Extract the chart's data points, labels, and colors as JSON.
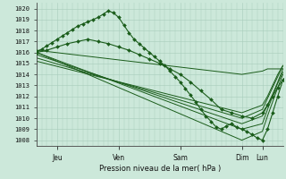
{
  "ylabel": "Pression niveau de la mer( hPa )",
  "ylim": [
    1007.5,
    1020.5
  ],
  "yticks": [
    1008,
    1009,
    1010,
    1011,
    1012,
    1013,
    1014,
    1015,
    1016,
    1017,
    1018,
    1019,
    1020
  ],
  "xlim": [
    0,
    288
  ],
  "bg_color": "#cce8da",
  "grid_color": "#a8ccba",
  "line_color": "#1a5c1a",
  "xtick_pos": [
    24,
    96,
    168,
    240,
    264
  ],
  "xtick_labels": [
    "Jeu",
    "Ven",
    "Sam",
    "Dim",
    "Lun"
  ],
  "series": [
    {
      "x": [
        0,
        6,
        12,
        18,
        24,
        30,
        36,
        42,
        48,
        54,
        60,
        66,
        72,
        78,
        84,
        90,
        96,
        102,
        108,
        114,
        120,
        126,
        132,
        138,
        144,
        150,
        156,
        162,
        168,
        174,
        180,
        186,
        192,
        198,
        204,
        210,
        216,
        222,
        228,
        234,
        240,
        246,
        252,
        258,
        264,
        270,
        276,
        282,
        288
      ],
      "y": [
        1016.1,
        1016.3,
        1016.6,
        1016.9,
        1017.2,
        1017.5,
        1017.8,
        1018.1,
        1018.4,
        1018.6,
        1018.8,
        1019.0,
        1019.2,
        1019.5,
        1019.8,
        1019.6,
        1019.2,
        1018.5,
        1017.8,
        1017.2,
        1016.8,
        1016.4,
        1016.0,
        1015.6,
        1015.2,
        1014.8,
        1014.3,
        1013.8,
        1013.3,
        1012.7,
        1012.1,
        1011.5,
        1010.8,
        1010.2,
        1009.7,
        1009.2,
        1009.0,
        1009.3,
        1009.5,
        1009.2,
        1009.0,
        1008.8,
        1008.5,
        1008.2,
        1008.0,
        1009.0,
        1010.5,
        1012.0,
        1013.5
      ],
      "marker": "D",
      "ms": 2.0
    },
    {
      "x": [
        0,
        240,
        264,
        270,
        276,
        282,
        288
      ],
      "y": [
        1016.0,
        1008.0,
        1008.8,
        1010.2,
        1011.5,
        1012.8,
        1014.0
      ],
      "marker": null,
      "ms": 0
    },
    {
      "x": [
        0,
        240,
        264,
        270,
        276,
        282,
        288
      ],
      "y": [
        1016.0,
        1009.0,
        1009.5,
        1010.8,
        1012.0,
        1013.2,
        1014.2
      ],
      "marker": null,
      "ms": 0
    },
    {
      "x": [
        0,
        240,
        264,
        270,
        276,
        282,
        288
      ],
      "y": [
        1015.8,
        1009.5,
        1010.2,
        1011.2,
        1012.2,
        1013.3,
        1014.5
      ],
      "marker": null,
      "ms": 0
    },
    {
      "x": [
        0,
        240,
        264,
        270,
        276,
        282,
        288
      ],
      "y": [
        1015.5,
        1010.0,
        1010.8,
        1011.8,
        1012.8,
        1013.8,
        1014.8
      ],
      "marker": null,
      "ms": 0
    },
    {
      "x": [
        0,
        240,
        264,
        270,
        276,
        282,
        288
      ],
      "y": [
        1015.2,
        1010.5,
        1011.2,
        1012.0,
        1013.0,
        1014.0,
        1014.8
      ],
      "marker": null,
      "ms": 0
    },
    {
      "x": [
        0,
        240,
        264,
        270,
        276,
        282,
        288
      ],
      "y": [
        1016.2,
        1014.0,
        1014.3,
        1014.5,
        1014.5,
        1014.5,
        1014.5
      ],
      "marker": null,
      "ms": 0
    },
    {
      "x": [
        0,
        12,
        24,
        36,
        48,
        60,
        72,
        84,
        96,
        108,
        120,
        132,
        144,
        156,
        168,
        180,
        192,
        204,
        216,
        228,
        240,
        252,
        264,
        270,
        276,
        282,
        288
      ],
      "y": [
        1016.0,
        1016.2,
        1016.5,
        1016.8,
        1017.0,
        1017.2,
        1017.0,
        1016.8,
        1016.5,
        1016.2,
        1015.8,
        1015.4,
        1015.0,
        1014.5,
        1014.0,
        1013.3,
        1012.5,
        1011.7,
        1010.8,
        1010.5,
        1010.2,
        1010.0,
        1010.5,
        1011.2,
        1012.0,
        1012.8,
        1013.5
      ],
      "marker": "D",
      "ms": 2.0
    }
  ]
}
